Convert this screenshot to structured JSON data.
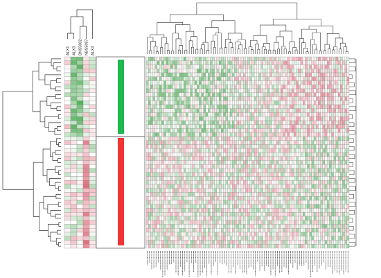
{
  "chart_data": {
    "type": "heatmap",
    "title": "",
    "left_panel": {
      "columns": [
        "ALX1",
        "ALX3",
        "BNS5002",
        "NBS5097",
        "ALX4"
      ],
      "row_count": 48
    },
    "main_panel": {
      "row_count": 48,
      "column_count": 92,
      "column_labels_legible": false
    },
    "clusters": [
      {
        "name": "",
        "color": "#1fb84f",
        "row_range": [
          0,
          19
        ]
      },
      {
        "name": "",
        "color": "#f03535",
        "row_range": [
          20,
          47
        ]
      }
    ],
    "colors": {
      "high": "#e05c6e",
      "low": "#3fa848",
      "mid": "#ffffff",
      "grid": "#888888",
      "dendrogram": "#333333"
    },
    "grid": true,
    "legend": "none"
  }
}
